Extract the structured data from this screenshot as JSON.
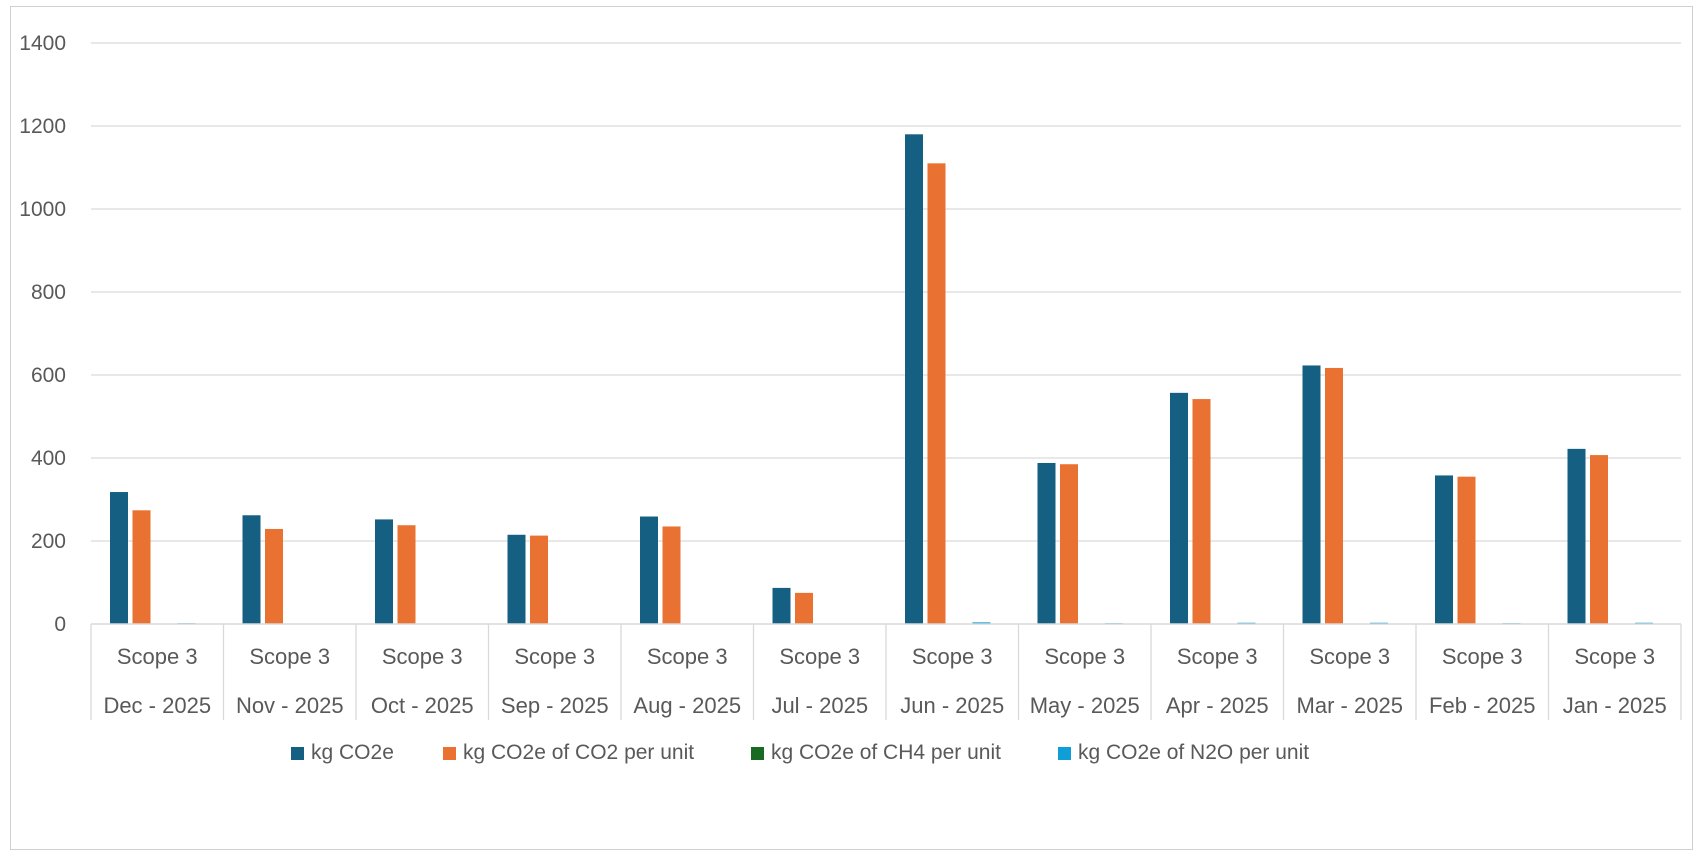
{
  "chart_data": {
    "type": "bar",
    "title": "",
    "xlabel": "",
    "ylabel": "",
    "ylim": [
      0,
      1400
    ],
    "yticks": [
      0,
      200,
      400,
      600,
      800,
      1000,
      1200,
      1400
    ],
    "grid": true,
    "legend_position": "bottom",
    "category_groups": [
      "Scope 3",
      "Scope 3",
      "Scope 3",
      "Scope 3",
      "Scope 3",
      "Scope 3",
      "Scope 3",
      "Scope 3",
      "Scope 3",
      "Scope 3",
      "Scope 3",
      "Scope 3"
    ],
    "categories": [
      "Dec - 2025",
      "Nov - 2025",
      "Oct - 2025",
      "Sep - 2025",
      "Aug - 2025",
      "Jul - 2025",
      "Jun - 2025",
      "May - 2025",
      "Apr - 2025",
      "Mar - 2025",
      "Feb - 2025",
      "Jan - 2025"
    ],
    "series": [
      {
        "name": "kg CO2e",
        "color": "#156082",
        "values": [
          318,
          262,
          252,
          215,
          259,
          87,
          1180,
          388,
          557,
          623,
          358,
          422
        ]
      },
      {
        "name": "kg CO2e of CO2 per unit",
        "color": "#E97132",
        "values": [
          274,
          229,
          238,
          213,
          235,
          75,
          1110,
          385,
          542,
          617,
          355,
          407
        ]
      },
      {
        "name": "kg CO2e of CH4 per unit",
        "color": "#196B24",
        "values": [
          0,
          0,
          0,
          0,
          0,
          0,
          0,
          0,
          0,
          0,
          0,
          0
        ]
      },
      {
        "name": "kg CO2e of N2O per unit",
        "color": "#0F9ED5",
        "values": [
          2,
          1,
          1,
          1,
          1,
          0,
          4,
          2,
          3,
          3,
          2,
          3
        ]
      }
    ]
  }
}
